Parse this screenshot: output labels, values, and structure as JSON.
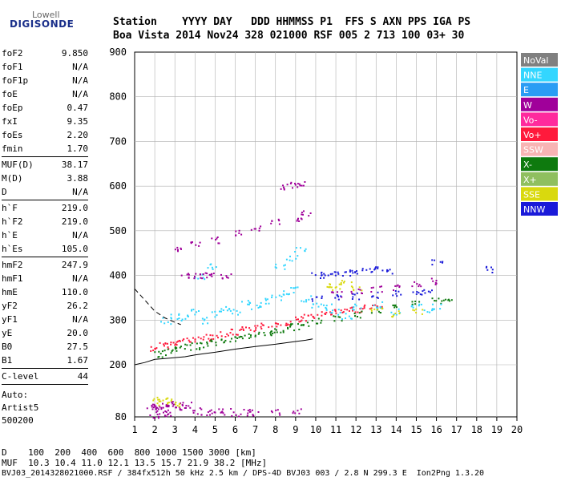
{
  "logo": {
    "top": "Lowell",
    "main": "DIGISONDE"
  },
  "header": {
    "line1": "Station    YYYY DAY   DDD HHMMSS P1  FFS S AXN PPS IGA PS",
    "line2": "Boa Vista 2014 Nov24 328 021000 RSF 005 2 713 100 03+ 30"
  },
  "params": [
    {
      "name": "foF2",
      "value": "9.850"
    },
    {
      "name": "foF1",
      "value": "N/A"
    },
    {
      "name": "foF1p",
      "value": "N/A"
    },
    {
      "name": "foE",
      "value": "N/A"
    },
    {
      "name": "foEp",
      "value": "0.47"
    },
    {
      "name": "fxI",
      "value": "9.35"
    },
    {
      "name": "foEs",
      "value": "2.20"
    },
    {
      "name": "fmin",
      "value": "1.70"
    },
    {
      "name": "MUF(D)",
      "value": "38.17"
    },
    {
      "name": "M(D)",
      "value": "3.88"
    },
    {
      "name": "D",
      "value": "N/A"
    },
    {
      "name": "h`F",
      "value": "219.0"
    },
    {
      "name": "h`F2",
      "value": "219.0"
    },
    {
      "name": "h`E",
      "value": "N/A"
    },
    {
      "name": "h`Es",
      "value": "105.0"
    },
    {
      "name": "hmF2",
      "value": "247.9"
    },
    {
      "name": "hmF1",
      "value": "N/A"
    },
    {
      "name": "hmE",
      "value": "110.0"
    },
    {
      "name": "yF2",
      "value": "26.2"
    },
    {
      "name": "yF1",
      "value": "N/A"
    },
    {
      "name": "yE",
      "value": "20.0"
    },
    {
      "name": "B0",
      "value": "27.5"
    },
    {
      "name": "B1",
      "value": "1.67"
    },
    {
      "name": "C-level",
      "value": "44"
    }
  ],
  "auto": {
    "label": "Auto:",
    "artist": "Artist5",
    "version": "500200"
  },
  "footer": {
    "d_line": "D    100  200  400  600  800 1000 1500 3000 [km]",
    "muf_line": "MUF  10.3 10.4 11.0 12.1 13.5 15.7 21.9 38.2 [MHz]",
    "file_line": "BVJ03_2014328021000.RSF / 384fx512h 50 kHz 2.5 km / DPS-4D BVJ03 003 / 2.8 N 299.3 E  Ion2Png 1.3.20"
  },
  "chart_data": {
    "type": "scatter",
    "xlim": [
      1,
      20
    ],
    "ylim": [
      80,
      900
    ],
    "xticks": [
      "1",
      "2",
      "3",
      "4",
      "5",
      "6",
      "7",
      "8",
      "9",
      "10",
      "11",
      "12",
      "13",
      "14",
      "15",
      "16",
      "17",
      "18",
      "19",
      "20"
    ],
    "yticks": [
      "80",
      "200",
      "300",
      "400",
      "500",
      "600",
      "700",
      "800",
      "900"
    ],
    "grid": true,
    "legend_position": "right",
    "legend": [
      {
        "name": "NoVal",
        "color": "#808080",
        "text": "#ffffff"
      },
      {
        "name": "NNE",
        "color": "#33d6ff",
        "text": "#ffffff"
      },
      {
        "name": "E",
        "color": "#2a9df4",
        "text": "#ffffff"
      },
      {
        "name": "W",
        "color": "#a0009a",
        "text": "#ffffff"
      },
      {
        "name": "Vo-",
        "color": "#ff2a9d",
        "text": "#ffffff"
      },
      {
        "name": "Vo+",
        "color": "#ff1a3c",
        "text": "#ffffff"
      },
      {
        "name": "SSW",
        "color": "#f8b4b4",
        "text": "#ffffff"
      },
      {
        "name": "X-",
        "color": "#0e7a0e",
        "text": "#ffffff"
      },
      {
        "name": "X+",
        "color": "#8fbf5f",
        "text": "#ffffff"
      },
      {
        "name": "SSE",
        "color": "#d9d90e",
        "text": "#ffffff"
      },
      {
        "name": "NNW",
        "color": "#1a1ad9",
        "text": "#ffffff"
      }
    ],
    "traces": [
      {
        "name": "o-trace",
        "color": "#ff1a3c",
        "points": [
          [
            2.0,
            238
          ],
          [
            2.4,
            244
          ],
          [
            2.8,
            248
          ],
          [
            3.2,
            252
          ],
          [
            3.6,
            255
          ],
          [
            4.0,
            258
          ],
          [
            4.5,
            262
          ],
          [
            5.0,
            266
          ],
          [
            5.5,
            270
          ],
          [
            6.0,
            274
          ],
          [
            6.5,
            279
          ],
          [
            7.0,
            283
          ],
          [
            7.5,
            288
          ],
          [
            8.0,
            293
          ],
          [
            8.5,
            297
          ],
          [
            9.0,
            302
          ],
          [
            9.5,
            307
          ],
          [
            10.0,
            312
          ],
          [
            10.5,
            315
          ],
          [
            11.0,
            318
          ],
          [
            11.5,
            322
          ],
          [
            12.0,
            326
          ],
          [
            12.5,
            330
          ],
          [
            13.0,
            333
          ]
        ]
      },
      {
        "name": "x-trace",
        "color": "#0e7a0e",
        "points": [
          [
            2.2,
            225
          ],
          [
            2.6,
            230
          ],
          [
            3.0,
            235
          ],
          [
            3.5,
            240
          ],
          [
            4.0,
            243
          ],
          [
            4.5,
            247
          ],
          [
            5.0,
            252
          ],
          [
            5.5,
            256
          ],
          [
            6.0,
            260
          ],
          [
            6.5,
            264
          ],
          [
            7.0,
            268
          ],
          [
            7.5,
            272
          ],
          [
            8.0,
            276
          ],
          [
            8.5,
            281
          ],
          [
            9.0,
            286
          ],
          [
            9.5,
            291
          ],
          [
            10.0,
            298
          ],
          [
            11.0,
            306
          ],
          [
            12.0,
            314
          ],
          [
            13.0,
            322
          ],
          [
            14.0,
            330
          ],
          [
            15.0,
            338
          ],
          [
            16.0,
            345
          ],
          [
            16.5,
            350
          ]
        ]
      },
      {
        "name": "nne-cloud",
        "color": "#33d6ff",
        "points": [
          [
            2.5,
            300
          ],
          [
            3.0,
            310
          ],
          [
            3.5,
            305
          ],
          [
            4.0,
            320
          ],
          [
            4.5,
            300
          ],
          [
            5.0,
            315
          ],
          [
            5.5,
            330
          ],
          [
            6.0,
            320
          ],
          [
            6.5,
            340
          ],
          [
            7.0,
            330
          ],
          [
            7.5,
            345
          ],
          [
            8.0,
            350
          ],
          [
            8.5,
            360
          ],
          [
            9.0,
            370
          ],
          [
            9.5,
            350
          ],
          [
            10.0,
            335
          ],
          [
            10.5,
            330
          ],
          [
            11.0,
            320
          ],
          [
            11.5,
            310
          ],
          [
            12.0,
            330
          ],
          [
            13.0,
            335
          ],
          [
            14.0,
            320
          ],
          [
            15.0,
            330
          ],
          [
            15.5,
            325
          ],
          [
            16.0,
            330
          ],
          [
            4.2,
            400
          ],
          [
            4.8,
            420
          ],
          [
            8.2,
            420
          ],
          [
            8.8,
            440
          ],
          [
            9.2,
            460
          ]
        ]
      },
      {
        "name": "w-cloud",
        "color": "#a0009a",
        "points": [
          [
            3.5,
            400
          ],
          [
            4.0,
            400
          ],
          [
            4.5,
            400
          ],
          [
            5.0,
            400
          ],
          [
            5.5,
            401
          ],
          [
            3.0,
            460
          ],
          [
            4.0,
            470
          ],
          [
            5.0,
            480
          ],
          [
            6.0,
            495
          ],
          [
            7.0,
            508
          ],
          [
            8.0,
            520
          ],
          [
            9.0,
            530
          ],
          [
            9.5,
            540
          ],
          [
            8.5,
            600
          ],
          [
            9.0,
            603
          ],
          [
            9.3,
            605
          ],
          [
            11.0,
            360
          ],
          [
            12.0,
            365
          ],
          [
            13.0,
            370
          ],
          [
            14.0,
            375
          ],
          [
            15.0,
            380
          ],
          [
            16.0,
            388
          ]
        ]
      },
      {
        "name": "nnw-trace",
        "color": "#1a1ad9",
        "points": [
          [
            10.0,
            400
          ],
          [
            10.5,
            402
          ],
          [
            11.0,
            405
          ],
          [
            11.5,
            408
          ],
          [
            12.0,
            410
          ],
          [
            12.5,
            412
          ],
          [
            13.0,
            415
          ],
          [
            13.5,
            412
          ],
          [
            10.0,
            350
          ],
          [
            11.0,
            352
          ],
          [
            12.0,
            355
          ],
          [
            13.0,
            357
          ],
          [
            14.0,
            360
          ],
          [
            15.0,
            360
          ],
          [
            15.5,
            362
          ],
          [
            16.0,
            430
          ],
          [
            18.5,
            415
          ]
        ]
      },
      {
        "name": "es-cloud",
        "color": "#a0009a",
        "points": [
          [
            1.8,
            105
          ],
          [
            2.0,
            103
          ],
          [
            2.2,
            107
          ],
          [
            2.5,
            104
          ],
          [
            2.8,
            110
          ],
          [
            3.0,
            106
          ],
          [
            3.3,
            102
          ],
          [
            3.6,
            108
          ],
          [
            4.0,
            95
          ],
          [
            4.5,
            92
          ],
          [
            5.0,
            96
          ],
          [
            5.5,
            93
          ],
          [
            6.0,
            90
          ],
          [
            6.5,
            92
          ],
          [
            7.0,
            91
          ],
          [
            8.0,
            92
          ],
          [
            9.0,
            93
          ],
          [
            1.9,
            85
          ],
          [
            2.3,
            88
          ],
          [
            2.7,
            86
          ]
        ]
      },
      {
        "name": "sse-cloud",
        "color": "#d9d90e",
        "points": [
          [
            2.0,
            120
          ],
          [
            2.4,
            115
          ],
          [
            2.8,
            118
          ],
          [
            3.2,
            112
          ],
          [
            10.5,
            380
          ],
          [
            11.0,
            375
          ],
          [
            11.5,
            385
          ],
          [
            12.0,
            370
          ],
          [
            13.0,
            325
          ],
          [
            14.0,
            315
          ],
          [
            15.0,
            320
          ]
        ]
      }
    ],
    "profile_curve": [
      [
        1.0,
        200
      ],
      [
        1.5,
        205
      ],
      [
        2.0,
        212
      ],
      [
        2.5,
        214
      ],
      [
        3.0,
        216
      ],
      [
        3.5,
        218
      ],
      [
        4.0,
        222
      ],
      [
        5.0,
        228
      ],
      [
        6.0,
        235
      ],
      [
        7.0,
        241
      ],
      [
        8.0,
        246
      ],
      [
        9.0,
        252
      ],
      [
        9.5,
        255
      ],
      [
        9.85,
        258
      ]
    ],
    "profile_upper": [
      [
        1.0,
        370
      ],
      [
        1.5,
        345
      ],
      [
        2.0,
        320
      ],
      [
        2.5,
        305
      ],
      [
        3.0,
        295
      ],
      [
        3.3,
        290
      ]
    ]
  }
}
